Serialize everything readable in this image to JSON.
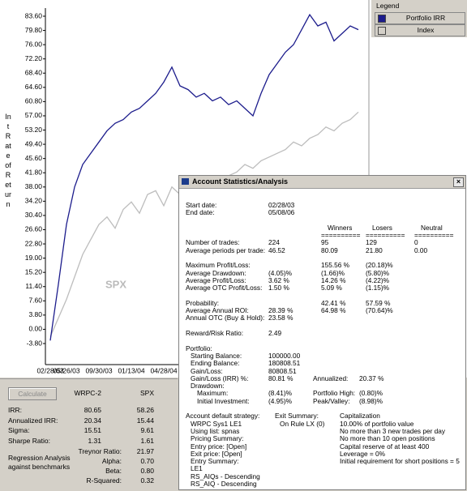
{
  "chart_data": {
    "type": "line",
    "y_label": "Int Rate of Return",
    "legend_title": "Legend",
    "annotation": "SPX",
    "grid": false,
    "categories": [
      "02/28/03",
      null,
      "05/26/03",
      null,
      null,
      null,
      "09/30/03",
      null,
      null,
      null,
      "01/13/04",
      null,
      null,
      null,
      "04/28/04",
      null,
      null,
      null,
      null,
      null,
      null,
      null,
      null,
      null,
      null,
      null,
      null,
      null,
      null,
      null,
      null,
      null,
      null,
      null,
      null,
      null,
      null,
      null,
      null
    ],
    "series": [
      {
        "name": "Portfolio IRR",
        "color": "#1c1c8c",
        "values": [
          -3,
          12,
          28,
          38,
          44,
          47,
          50,
          53,
          55,
          56,
          58,
          59,
          61,
          63,
          66,
          70,
          65,
          64,
          62,
          63,
          61,
          62,
          60,
          61,
          59,
          57,
          63,
          68,
          71,
          74,
          76,
          80,
          84,
          81,
          82,
          77,
          79,
          81,
          80
        ]
      },
      {
        "name": "Index",
        "color": "#bdbdbd",
        "values": [
          -2,
          3,
          8,
          14,
          20,
          24,
          28,
          30,
          27,
          32,
          34,
          31,
          36,
          37,
          33,
          38,
          36,
          35,
          37,
          38,
          40,
          39,
          41,
          42,
          44,
          43,
          45,
          46,
          47,
          48,
          50,
          49,
          51,
          52,
          54,
          53,
          55,
          56,
          58
        ]
      }
    ],
    "ylim": [
      -3.8,
      83.6
    ],
    "yticks": [
      {
        "value": -3.8,
        "label": "-3.80"
      },
      {
        "value": 0,
        "label": "0.00"
      },
      {
        "value": 3.8,
        "label": "3.80"
      },
      {
        "value": 7.6,
        "label": "7.60"
      },
      {
        "value": 11.4,
        "label": "11.40"
      },
      {
        "value": 15.2,
        "label": "15.20"
      },
      {
        "value": 19,
        "label": "19.00"
      },
      {
        "value": 22.8,
        "label": "22.80"
      },
      {
        "value": 26.6,
        "label": "26.60"
      },
      {
        "value": 30.4,
        "label": "30.40"
      },
      {
        "value": 34.2,
        "label": "34.20"
      },
      {
        "value": 38,
        "label": "38.00"
      },
      {
        "value": 41.8,
        "label": "41.80"
      },
      {
        "value": 45.6,
        "label": "45.60"
      },
      {
        "value": 49.4,
        "label": "49.40"
      },
      {
        "value": 53.2,
        "label": "53.20"
      },
      {
        "value": 57,
        "label": "57.00"
      },
      {
        "value": 60.8,
        "label": "60.80"
      },
      {
        "value": 64.6,
        "label": "64.60"
      },
      {
        "value": 68.4,
        "label": "68.40"
      },
      {
        "value": 72.2,
        "label": "72.20"
      },
      {
        "value": 76,
        "label": "76.00"
      },
      {
        "value": 79.8,
        "label": "79.80"
      },
      {
        "value": 83.6,
        "label": "83.60"
      }
    ]
  },
  "stats_panel": {
    "button": "Calculate",
    "columns": [
      "WRPC-2",
      "SPX"
    ],
    "rows": [
      {
        "label": "IRR:",
        "values": [
          "80.65",
          "58.26"
        ]
      },
      {
        "label": "Annualized IRR:",
        "values": [
          "20.34",
          "15.44"
        ]
      },
      {
        "label": "Sigma:",
        "values": [
          "15.51",
          "9.61"
        ]
      },
      {
        "label": "Sharpe Ratio:",
        "values": [
          "1.31",
          "1.61"
        ]
      }
    ],
    "regression_note": "Regression Analysis against benchmarks",
    "regression_rows": [
      {
        "label": "Treynor Ratio:",
        "value": "21.97"
      },
      {
        "label": "Alpha:",
        "value": "0.70"
      },
      {
        "label": "Beta:",
        "value": "0.80"
      },
      {
        "label": "R-Squared:",
        "value": "0.32"
      }
    ]
  },
  "dialog": {
    "title": "Account Statistics/Analysis",
    "dates": [
      {
        "label": "Start date:",
        "total": "02/28/03"
      },
      {
        "label": "End date:",
        "total": "05/08/06"
      }
    ],
    "headers": [
      {
        "key": "winners",
        "name": "Winners",
        "rule": "=========="
      },
      {
        "key": "losers",
        "name": "Losers",
        "rule": "=========="
      },
      {
        "key": "neutral",
        "name": "Neutral",
        "rule": "=========="
      }
    ],
    "sections": [
      [
        {
          "label": "Number of trades:",
          "total": "224",
          "winners": "95",
          "losers": "129",
          "neutral": "0"
        },
        {
          "label": "Average periods per trade:",
          "total": "46.52",
          "winners": "80.09",
          "losers": "21.80",
          "neutral": "0.00"
        }
      ],
      [
        {
          "label": "Maximum Profit/Loss:",
          "winners": "155.56 %",
          "losers": "(20.18)%"
        },
        {
          "label": "Average Drawdown:",
          "total": "(4.05)%",
          "winners": "(1.66)%",
          "losers": "(5.80)%"
        },
        {
          "label": "Average Profit/Loss:",
          "total": "3.62 %",
          "winners": "14.26 %",
          "losers": "(4.22)%"
        },
        {
          "label": "Average OTC Profit/Loss:",
          "total": "1.50 %",
          "winners": "5.09 %",
          "losers": "(1.15)%"
        }
      ],
      [
        {
          "label": "Probability:",
          "winners": "42.41 %",
          "losers": "57.59 %"
        },
        {
          "label": "Average Annual ROI:",
          "total": "28.39 %",
          "winners": "64.98 %",
          "losers": "(70.64)%"
        },
        {
          "label": "Annual OTC (Buy & Hold):",
          "total": "23.58 %"
        }
      ],
      [
        {
          "label": "Reward/Risk Ratio:",
          "total": "2.49"
        }
      ]
    ],
    "portfolio": {
      "label": "Portfolio:",
      "items": [
        {
          "label": "Starting Balance:",
          "total": "100000.00"
        },
        {
          "label": "Ending Balance:",
          "total": "180808.51"
        },
        {
          "label": "Gain/Loss:",
          "total": "80808.51"
        },
        {
          "label": "Gain/Loss (IRR) %:",
          "total": "80.81 %",
          "extra_label": "Annualized:",
          "extra_value": "20.37 %"
        }
      ],
      "drawdown": {
        "label": "Drawdown:",
        "items": [
          {
            "label": "Maximum:",
            "total": "(8.41)%",
            "extra_label": "Portfolio High:",
            "extra_value": "(0.80)%"
          },
          {
            "label": "Initial Investment:",
            "total": "(4.95)%",
            "extra_label": "Peak/Valley:",
            "extra_value": "(8.98)%"
          }
        ]
      }
    },
    "settings": {
      "strategy": [
        "Account default strategy:",
        "WRPC Sys1 LE1",
        "Using list:  spnas",
        "Pricing Summary:",
        "Entry price:  [Open]",
        "Exit price:  [Open]",
        "Entry Summary:",
        "LE1",
        "RS_AIQs - Descending",
        "RS_AIQ - Descending"
      ],
      "exit": [
        "Exit Summary:",
        "On Rule LX (0)"
      ],
      "capitalization": [
        "Capitalization",
        "10.00% of portfolio value",
        "No more than 3 new trades per day",
        "No more than 10 open positions",
        "Capital reserve of at least 400",
        "Leverage = 0%",
        "Initial requirement for short positions = 5"
      ]
    }
  }
}
